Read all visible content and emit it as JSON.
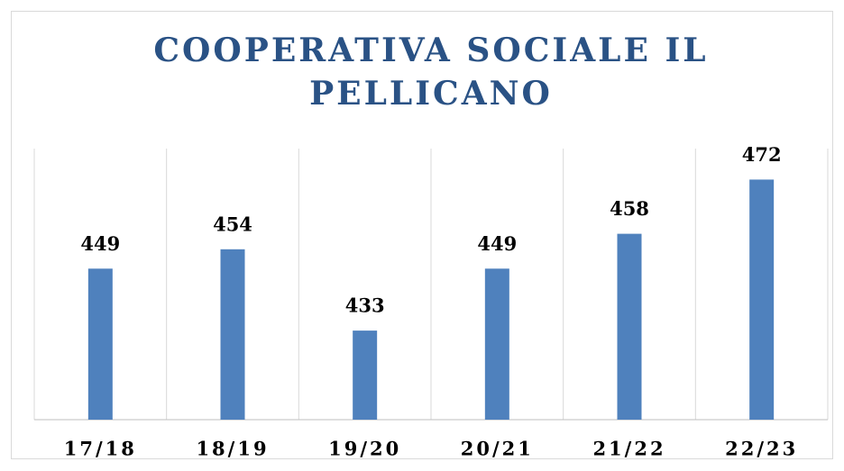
{
  "chart_data": {
    "type": "bar",
    "title": "COOPERATIVA SOCIALE IL PELLICANO",
    "categories": [
      "17/18",
      "18/19",
      "19/20",
      "20/21",
      "21/22",
      "22/23"
    ],
    "values": [
      449,
      454,
      433,
      449,
      458,
      472
    ],
    "color": "#4f81bd",
    "ylim": [
      410,
      480
    ]
  }
}
